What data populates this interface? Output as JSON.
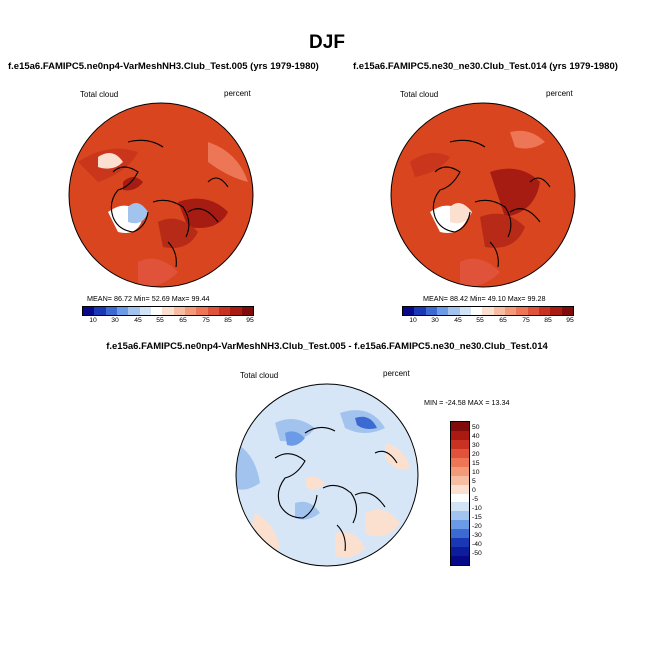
{
  "main_title": "DJF",
  "colors": {
    "warm_fill": "#d8451e",
    "warm_dark": "#a61b12",
    "diff_fill": "#d6e6f6",
    "coast": "#000000"
  },
  "panels": [
    {
      "title": "f.e15a6.FAMIPC5.ne0np4-VarMeshNH3.Club_Test.005 (yrs 1979-1980)",
      "left_label": "Total cloud",
      "right_label": "percent",
      "stats": "MEAN=  86.72  Min=  52.69  Max=  99.44"
    },
    {
      "title": "f.e15a6.FAMIPC5.ne30_ne30.Club_Test.014 (yrs 1979-1980)",
      "left_label": "Total cloud",
      "right_label": "percent",
      "stats": "MEAN=  88.42  Min=  49.10  Max=  99.28"
    }
  ],
  "colorbar_horizontal": {
    "labels": [
      "10",
      "30",
      "45",
      "55",
      "65",
      "75",
      "85",
      "95"
    ],
    "colors": [
      "#08088a",
      "#1a37b5",
      "#3a6ad2",
      "#6b9ae6",
      "#a3c3ef",
      "#d3e3f6",
      "#ffffff",
      "#fbe0d0",
      "#f7bda2",
      "#f39a78",
      "#ec7656",
      "#e0533a",
      "#c93223",
      "#aa1a13",
      "#7f0b0b"
    ]
  },
  "difference": {
    "title": "f.e15a6.FAMIPC5.ne0np4-VarMeshNH3.Club_Test.005 - f.e15a6.FAMIPC5.ne30_ne30.Club_Test.014",
    "left_label": "Total cloud",
    "right_label": "percent",
    "stats": "MIN = -24.58 MAX =  13.34",
    "colorbar_labels": [
      "50",
      "40",
      "30",
      "20",
      "15",
      "10",
      "5",
      "0",
      "-5",
      "-10",
      "-15",
      "-20",
      "-30",
      "-40",
      "-50"
    ],
    "colorbar_colors": [
      "#7f0b0b",
      "#aa1a13",
      "#c93223",
      "#e0533a",
      "#ec7656",
      "#f39a78",
      "#f7bda2",
      "#fbe0d0",
      "#ffffff",
      "#d3e3f6",
      "#a3c3ef",
      "#6b9ae6",
      "#3a6ad2",
      "#1a37b5",
      "#0c1c9a",
      "#08088a"
    ]
  }
}
